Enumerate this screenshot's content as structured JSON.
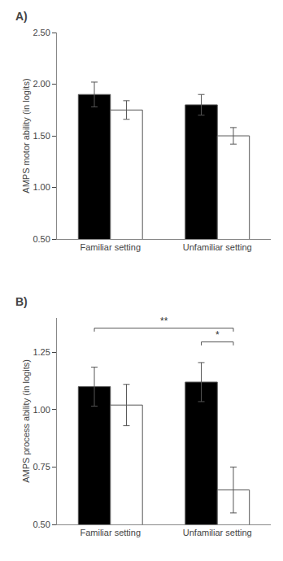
{
  "chart_data": [
    {
      "type": "bar",
      "title": "A)",
      "ylabel": "AMPS motor ability (in logits)",
      "categories": [
        "Familiar setting",
        "Unfamiliar setting"
      ],
      "series": [
        {
          "color": "#000000",
          "values": [
            1.9,
            1.8
          ],
          "errors": [
            0.12,
            0.1
          ]
        },
        {
          "color": "#ffffff",
          "values": [
            1.75,
            1.5
          ],
          "errors": [
            0.09,
            0.08
          ]
        }
      ],
      "ylim": [
        0.5,
        2.5
      ],
      "yticks": [
        {
          "value": 0.5,
          "label": "0.50"
        },
        {
          "value": 1.0,
          "label": "1.00"
        },
        {
          "value": 1.5,
          "label": "1.50"
        },
        {
          "value": 2.0,
          "label": "2.00"
        },
        {
          "value": 2.5,
          "label": "2.50"
        }
      ],
      "grid": false
    },
    {
      "type": "bar",
      "title": "B)",
      "ylabel": "AMPS process ability (in logits)",
      "categories": [
        "Familiar setting",
        "Unfamiliar setting"
      ],
      "series": [
        {
          "color": "#000000",
          "values": [
            1.1,
            1.12
          ],
          "errors": [
            0.085,
            0.085
          ]
        },
        {
          "color": "#ffffff",
          "values": [
            1.02,
            0.65
          ],
          "errors": [
            0.09,
            0.1
          ]
        }
      ],
      "ylim": [
        0.5,
        1.4
      ],
      "yticks": [
        {
          "value": 0.5,
          "label": "0.50"
        },
        {
          "value": 0.75,
          "label": "0.75"
        },
        {
          "value": 1.0,
          "label": "1.00"
        },
        {
          "value": 1.25,
          "label": "1.25"
        }
      ],
      "grid": false,
      "annotations": [
        {
          "text": "**",
          "y": 1.355,
          "from": [
            0,
            0
          ],
          "to": [
            1,
            1
          ]
        },
        {
          "text": "*",
          "y": 1.295,
          "from": [
            1,
            0
          ],
          "to": [
            1,
            1
          ]
        }
      ]
    }
  ]
}
